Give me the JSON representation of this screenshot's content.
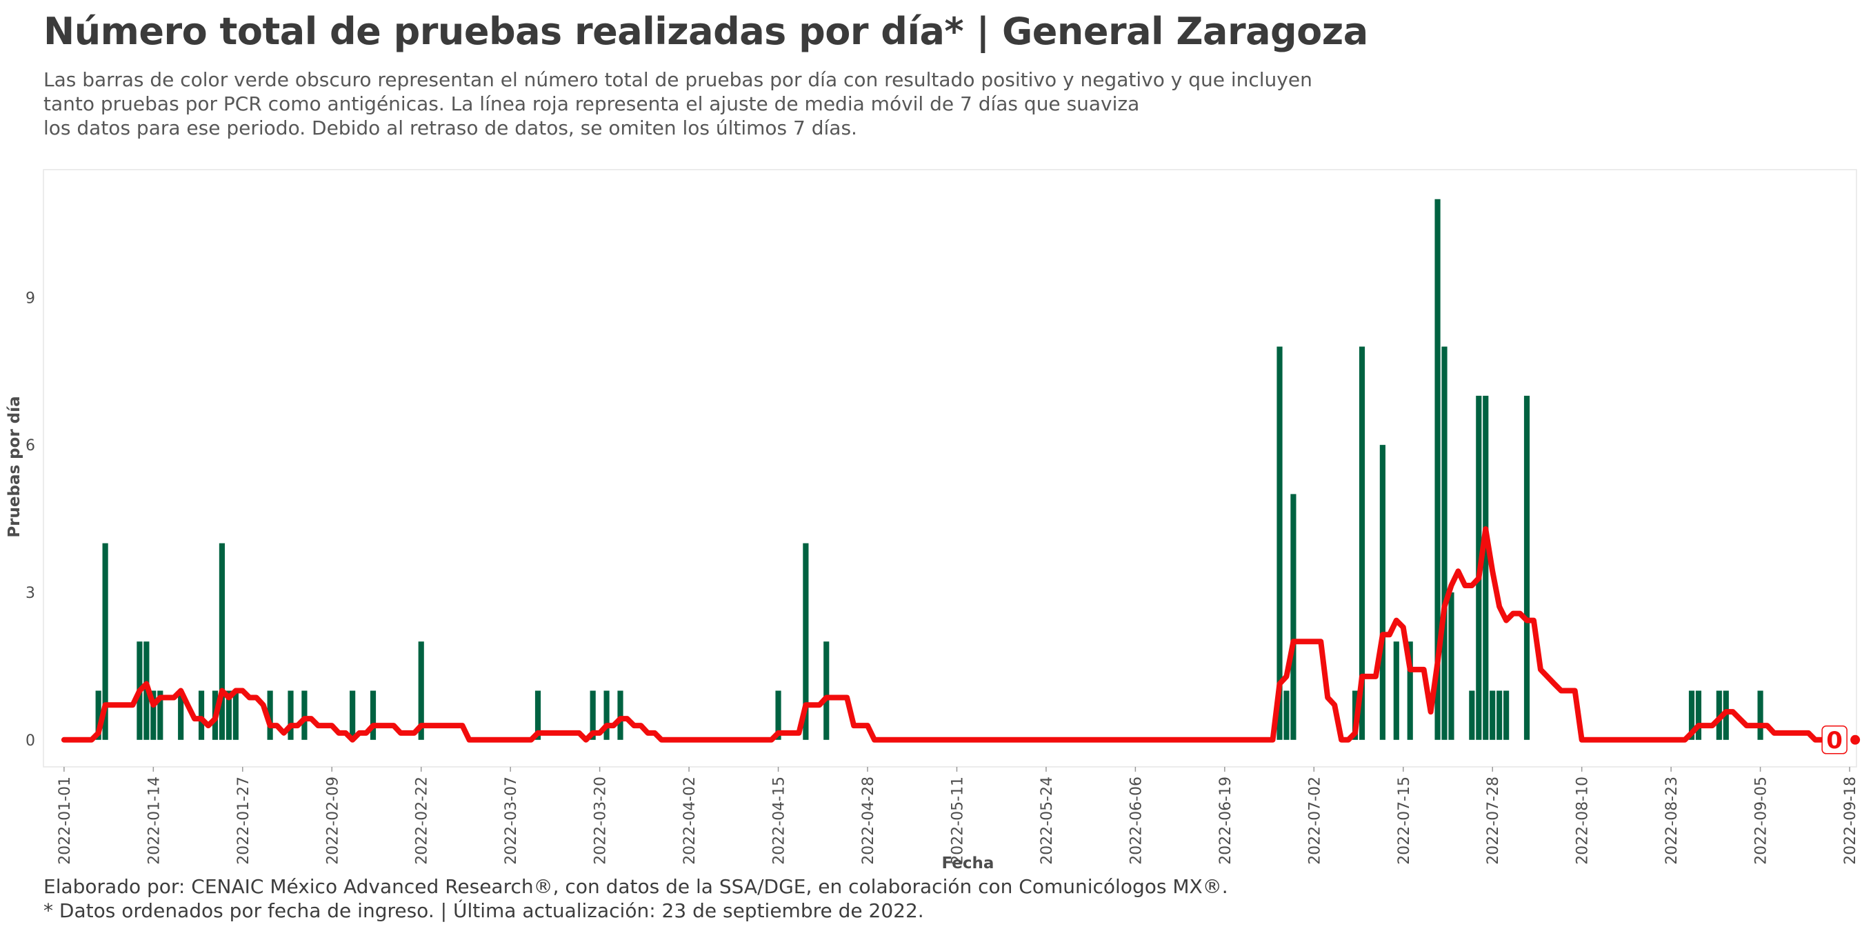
{
  "title": "Número total de pruebas realizadas por día* | General Zaragoza",
  "subtitle_lines": [
    "Las barras de color verde obscuro representan el número total de pruebas por día con resultado positivo y negativo y que incluyen",
    "tanto pruebas por PCR como antigénicas. La línea roja representa el ajuste de media móvil de 7 días que suaviza",
    "los datos para ese periodo. Debido al retraso de datos, se omiten los últimos 7 días."
  ],
  "caption_lines": [
    "Elaborado por: CENAIC México Advanced Research®, con datos de la SSA/DGE, en colaboración con Comunicólogos MX®.",
    "* Datos ordenados por fecha de ingreso. | Última actualización: 23 de septiembre de 2022."
  ],
  "colors": {
    "bar": "#006241",
    "line": "#f20c0c",
    "axis_text": "#4d4d4d",
    "panel_border": "#e6e6e6"
  },
  "chart_data": {
    "type": "bar",
    "xlabel": "Fecha",
    "ylabel": "Pruebas por día",
    "x_start": "2022-01-01",
    "x_end": "2022-09-16",
    "xlim": [
      "2021-12-29",
      "2022-09-19"
    ],
    "ylim": [
      -0.55,
      11.6
    ],
    "y_ticks": [
      0,
      3,
      6,
      9
    ],
    "x_ticks": [
      "2022-01-01",
      "2022-01-14",
      "2022-01-27",
      "2022-02-09",
      "2022-02-22",
      "2022-03-07",
      "2022-03-20",
      "2022-04-02",
      "2022-04-15",
      "2022-04-28",
      "2022-05-11",
      "2022-05-24",
      "2022-06-06",
      "2022-06-19",
      "2022-07-02",
      "2022-07-15",
      "2022-07-28",
      "2022-08-10",
      "2022-08-23",
      "2022-09-05",
      "2022-09-18"
    ],
    "series": [
      {
        "kind": "bar",
        "points": [
          [
            "2022-01-06",
            1
          ],
          [
            "2022-01-07",
            4
          ],
          [
            "2022-01-12",
            2
          ],
          [
            "2022-01-13",
            2
          ],
          [
            "2022-01-14",
            1
          ],
          [
            "2022-01-15",
            1
          ],
          [
            "2022-01-18",
            1
          ],
          [
            "2022-01-21",
            1
          ],
          [
            "2022-01-23",
            1
          ],
          [
            "2022-01-24",
            4
          ],
          [
            "2022-01-25",
            1
          ],
          [
            "2022-01-26",
            1
          ],
          [
            "2022-01-31",
            1
          ],
          [
            "2022-02-03",
            1
          ],
          [
            "2022-02-05",
            1
          ],
          [
            "2022-02-12",
            1
          ],
          [
            "2022-02-15",
            1
          ],
          [
            "2022-02-22",
            2
          ],
          [
            "2022-03-11",
            1
          ],
          [
            "2022-03-19",
            1
          ],
          [
            "2022-03-21",
            1
          ],
          [
            "2022-03-23",
            1
          ],
          [
            "2022-04-15",
            1
          ],
          [
            "2022-04-19",
            4
          ],
          [
            "2022-04-22",
            2
          ],
          [
            "2022-06-27",
            8
          ],
          [
            "2022-06-28",
            1
          ],
          [
            "2022-06-29",
            5
          ],
          [
            "2022-07-08",
            1
          ],
          [
            "2022-07-09",
            8
          ],
          [
            "2022-07-12",
            6
          ],
          [
            "2022-07-14",
            2
          ],
          [
            "2022-07-16",
            2
          ],
          [
            "2022-07-20",
            11
          ],
          [
            "2022-07-21",
            8
          ],
          [
            "2022-07-22",
            3
          ],
          [
            "2022-07-25",
            1
          ],
          [
            "2022-07-26",
            7
          ],
          [
            "2022-07-27",
            7
          ],
          [
            "2022-07-28",
            1
          ],
          [
            "2022-07-29",
            1
          ],
          [
            "2022-07-30",
            1
          ],
          [
            "2022-08-02",
            7
          ],
          [
            "2022-08-26",
            1
          ],
          [
            "2022-08-27",
            1
          ],
          [
            "2022-08-30",
            1
          ],
          [
            "2022-08-31",
            1
          ],
          [
            "2022-09-05",
            1
          ]
        ]
      },
      {
        "kind": "line",
        "name": "media móvil de 7 días",
        "points": [
          [
            "2022-01-01",
            0
          ],
          [
            "2022-01-05",
            0
          ],
          [
            "2022-01-06",
            0.14
          ],
          [
            "2022-01-07",
            0.71
          ],
          [
            "2022-01-11",
            0.71
          ],
          [
            "2022-01-12",
            1
          ],
          [
            "2022-01-13",
            1.14
          ],
          [
            "2022-01-14",
            0.71
          ],
          [
            "2022-01-15",
            0.86
          ],
          [
            "2022-01-17",
            0.86
          ],
          [
            "2022-01-18",
            1
          ],
          [
            "2022-01-19",
            0.71
          ],
          [
            "2022-01-20",
            0.43
          ],
          [
            "2022-01-21",
            0.43
          ],
          [
            "2022-01-22",
            0.29
          ],
          [
            "2022-01-23",
            0.43
          ],
          [
            "2022-01-24",
            1
          ],
          [
            "2022-01-25",
            0.86
          ],
          [
            "2022-01-26",
            1
          ],
          [
            "2022-01-27",
            1
          ],
          [
            "2022-01-28",
            0.86
          ],
          [
            "2022-01-29",
            0.86
          ],
          [
            "2022-01-30",
            0.71
          ],
          [
            "2022-01-31",
            0.29
          ],
          [
            "2022-02-01",
            0.29
          ],
          [
            "2022-02-02",
            0.14
          ],
          [
            "2022-02-03",
            0.29
          ],
          [
            "2022-02-04",
            0.29
          ],
          [
            "2022-02-05",
            0.43
          ],
          [
            "2022-02-06",
            0.43
          ],
          [
            "2022-02-07",
            0.29
          ],
          [
            "2022-02-09",
            0.29
          ],
          [
            "2022-02-10",
            0.14
          ],
          [
            "2022-02-11",
            0.14
          ],
          [
            "2022-02-12",
            0
          ],
          [
            "2022-02-13",
            0.14
          ],
          [
            "2022-02-14",
            0.14
          ],
          [
            "2022-02-15",
            0.29
          ],
          [
            "2022-02-18",
            0.29
          ],
          [
            "2022-02-19",
            0.14
          ],
          [
            "2022-02-21",
            0.14
          ],
          [
            "2022-02-22",
            0.29
          ],
          [
            "2022-02-28",
            0.29
          ],
          [
            "2022-03-01",
            0
          ],
          [
            "2022-03-10",
            0
          ],
          [
            "2022-03-11",
            0.14
          ],
          [
            "2022-03-17",
            0.14
          ],
          [
            "2022-03-18",
            0
          ],
          [
            "2022-03-19",
            0.14
          ],
          [
            "2022-03-20",
            0.14
          ],
          [
            "2022-03-21",
            0.29
          ],
          [
            "2022-03-22",
            0.29
          ],
          [
            "2022-03-23",
            0.43
          ],
          [
            "2022-03-24",
            0.43
          ],
          [
            "2022-03-25",
            0.29
          ],
          [
            "2022-03-26",
            0.29
          ],
          [
            "2022-03-27",
            0.14
          ],
          [
            "2022-03-28",
            0.14
          ],
          [
            "2022-03-29",
            0
          ],
          [
            "2022-04-14",
            0
          ],
          [
            "2022-04-15",
            0.14
          ],
          [
            "2022-04-18",
            0.14
          ],
          [
            "2022-04-19",
            0.71
          ],
          [
            "2022-04-21",
            0.71
          ],
          [
            "2022-04-22",
            0.86
          ],
          [
            "2022-04-25",
            0.86
          ],
          [
            "2022-04-26",
            0.29
          ],
          [
            "2022-04-28",
            0.29
          ],
          [
            "2022-04-29",
            0
          ],
          [
            "2022-06-26",
            0
          ],
          [
            "2022-06-27",
            1.14
          ],
          [
            "2022-06-28",
            1.29
          ],
          [
            "2022-06-29",
            2
          ],
          [
            "2022-07-03",
            2
          ],
          [
            "2022-07-04",
            0.86
          ],
          [
            "2022-07-05",
            0.71
          ],
          [
            "2022-07-06",
            0
          ],
          [
            "2022-07-07",
            0
          ],
          [
            "2022-07-08",
            0.14
          ],
          [
            "2022-07-09",
            1.29
          ],
          [
            "2022-07-11",
            1.29
          ],
          [
            "2022-07-12",
            2.14
          ],
          [
            "2022-07-13",
            2.14
          ],
          [
            "2022-07-14",
            2.43
          ],
          [
            "2022-07-15",
            2.29
          ],
          [
            "2022-07-16",
            1.43
          ],
          [
            "2022-07-18",
            1.43
          ],
          [
            "2022-07-19",
            0.57
          ],
          [
            "2022-07-20",
            1.57
          ],
          [
            "2022-07-21",
            2.71
          ],
          [
            "2022-07-22",
            3.14
          ],
          [
            "2022-07-23",
            3.43
          ],
          [
            "2022-07-24",
            3.14
          ],
          [
            "2022-07-25",
            3.14
          ],
          [
            "2022-07-26",
            3.29
          ],
          [
            "2022-07-27",
            4.29
          ],
          [
            "2022-07-28",
            3.43
          ],
          [
            "2022-07-29",
            2.71
          ],
          [
            "2022-07-30",
            2.43
          ],
          [
            "2022-07-31",
            2.57
          ],
          [
            "2022-08-01",
            2.57
          ],
          [
            "2022-08-02",
            2.43
          ],
          [
            "2022-08-03",
            2.43
          ],
          [
            "2022-08-04",
            1.43
          ],
          [
            "2022-08-06",
            1.14
          ],
          [
            "2022-08-07",
            1
          ],
          [
            "2022-08-09",
            1
          ],
          [
            "2022-08-10",
            0
          ],
          [
            "2022-08-25",
            0
          ],
          [
            "2022-08-26",
            0.14
          ],
          [
            "2022-08-27",
            0.29
          ],
          [
            "2022-08-29",
            0.29
          ],
          [
            "2022-08-30",
            0.43
          ],
          [
            "2022-08-31",
            0.57
          ],
          [
            "2022-09-01",
            0.57
          ],
          [
            "2022-09-02",
            0.43
          ],
          [
            "2022-09-03",
            0.29
          ],
          [
            "2022-09-06",
            0.29
          ],
          [
            "2022-09-07",
            0.14
          ],
          [
            "2022-09-12",
            0.14
          ],
          [
            "2022-09-13",
            0
          ],
          [
            "2022-09-16",
            0
          ]
        ]
      }
    ],
    "end_label": {
      "date": "2022-09-16",
      "value": 0,
      "text": "0"
    }
  }
}
